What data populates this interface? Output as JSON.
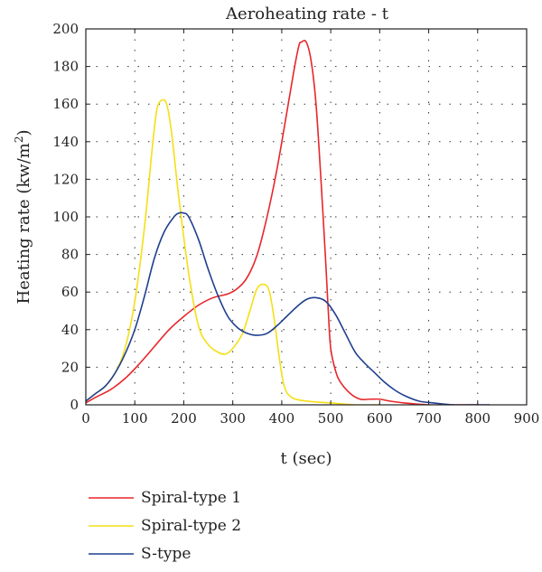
{
  "chart_data": {
    "type": "line",
    "title": "Aeroheating rate - t",
    "xlabel": "t (sec)",
    "ylabel": "Heating rate (kw/m",
    "ylabel_sup": "2",
    "ylabel_close": ")",
    "xlim": [
      0,
      900
    ],
    "ylim": [
      0,
      200
    ],
    "xticks": [
      0,
      100,
      200,
      300,
      400,
      500,
      600,
      700,
      800,
      900
    ],
    "yticks": [
      0,
      20,
      40,
      60,
      80,
      100,
      120,
      140,
      160,
      180,
      200
    ],
    "grid": true,
    "legend_position": "bottom-left",
    "series": [
      {
        "name": "Spiral-type 1",
        "color": "#e8262a",
        "points": [
          [
            0,
            1
          ],
          [
            20,
            4
          ],
          [
            50,
            8
          ],
          [
            80,
            14
          ],
          [
            110,
            22
          ],
          [
            140,
            31
          ],
          [
            170,
            40
          ],
          [
            200,
            47
          ],
          [
            230,
            53
          ],
          [
            260,
            57
          ],
          [
            290,
            59
          ],
          [
            310,
            62
          ],
          [
            330,
            68
          ],
          [
            350,
            80
          ],
          [
            370,
            100
          ],
          [
            390,
            125
          ],
          [
            410,
            155
          ],
          [
            425,
            178
          ],
          [
            435,
            191
          ],
          [
            440,
            193
          ],
          [
            450,
            193
          ],
          [
            460,
            183
          ],
          [
            470,
            160
          ],
          [
            480,
            120
          ],
          [
            490,
            75
          ],
          [
            495,
            50
          ],
          [
            500,
            30
          ],
          [
            510,
            18
          ],
          [
            520,
            12
          ],
          [
            540,
            6
          ],
          [
            560,
            3
          ],
          [
            580,
            3
          ],
          [
            600,
            3
          ],
          [
            620,
            2
          ],
          [
            650,
            1
          ],
          [
            700,
            0
          ],
          [
            750,
            0
          ],
          [
            800,
            0
          ]
        ]
      },
      {
        "name": "Spiral-type 2",
        "color": "#f5df16",
        "points": [
          [
            0,
            2
          ],
          [
            20,
            6
          ],
          [
            40,
            10
          ],
          [
            60,
            17
          ],
          [
            80,
            30
          ],
          [
            100,
            55
          ],
          [
            120,
            95
          ],
          [
            135,
            135
          ],
          [
            145,
            157
          ],
          [
            155,
            162
          ],
          [
            165,
            160
          ],
          [
            175,
            145
          ],
          [
            190,
            110
          ],
          [
            210,
            70
          ],
          [
            230,
            42
          ],
          [
            250,
            32
          ],
          [
            270,
            28
          ],
          [
            285,
            27
          ],
          [
            300,
            30
          ],
          [
            320,
            38
          ],
          [
            335,
            50
          ],
          [
            350,
            62
          ],
          [
            365,
            64
          ],
          [
            375,
            60
          ],
          [
            385,
            45
          ],
          [
            395,
            25
          ],
          [
            405,
            10
          ],
          [
            420,
            4
          ],
          [
            450,
            2
          ],
          [
            500,
            1
          ],
          [
            550,
            0
          ],
          [
            600,
            0
          ]
        ]
      },
      {
        "name": "S-type",
        "color": "#1f3f8f",
        "points": [
          [
            0,
            2
          ],
          [
            20,
            6
          ],
          [
            40,
            10
          ],
          [
            60,
            17
          ],
          [
            80,
            27
          ],
          [
            100,
            40
          ],
          [
            120,
            58
          ],
          [
            140,
            78
          ],
          [
            160,
            92
          ],
          [
            180,
            100
          ],
          [
            190,
            102
          ],
          [
            200,
            102
          ],
          [
            210,
            100
          ],
          [
            230,
            88
          ],
          [
            250,
            72
          ],
          [
            270,
            58
          ],
          [
            290,
            47
          ],
          [
            310,
            41
          ],
          [
            330,
            38
          ],
          [
            350,
            37
          ],
          [
            370,
            38
          ],
          [
            390,
            42
          ],
          [
            410,
            47
          ],
          [
            430,
            52
          ],
          [
            450,
            56
          ],
          [
            470,
            57
          ],
          [
            490,
            55
          ],
          [
            510,
            48
          ],
          [
            530,
            38
          ],
          [
            550,
            28
          ],
          [
            570,
            22
          ],
          [
            590,
            17
          ],
          [
            610,
            12
          ],
          [
            630,
            8
          ],
          [
            650,
            5
          ],
          [
            680,
            2
          ],
          [
            710,
            1
          ],
          [
            750,
            0
          ],
          [
            800,
            0
          ],
          [
            825,
            0
          ]
        ]
      }
    ]
  }
}
